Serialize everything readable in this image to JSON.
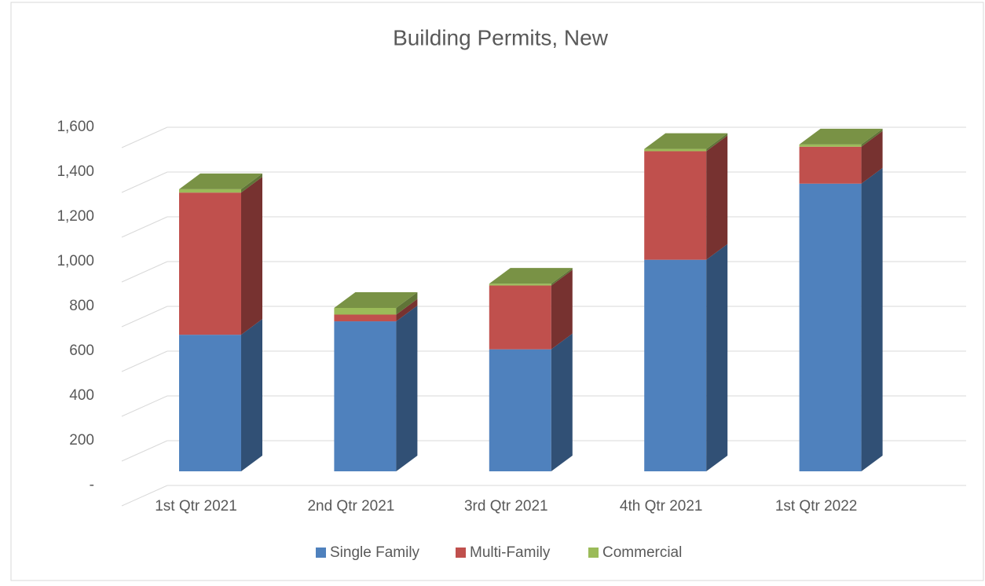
{
  "chart_data": {
    "type": "bar3d_stacked",
    "title": "Building Permits, New",
    "categories": [
      "1st Qtr 2021",
      "2nd Qtr 2021",
      "3rd Qtr 2021",
      "4th Qtr 2021",
      "1st Qtr 2022"
    ],
    "series": [
      {
        "name": "Single Family",
        "color": "#4f81bd",
        "values": [
          610,
          670,
          545,
          945,
          1285
        ]
      },
      {
        "name": "Multi-Family",
        "color": "#c0504d",
        "values": [
          635,
          30,
          285,
          485,
          165
        ]
      },
      {
        "name": "Commercial",
        "color": "#9bbb59",
        "values": [
          15,
          30,
          8,
          10,
          10
        ]
      }
    ],
    "ylim": [
      0,
      1800
    ],
    "yticks": [
      {
        "value": 0,
        "label": "-"
      },
      200,
      400,
      600,
      800,
      {
        "value": 1000,
        "label": "1,000"
      },
      {
        "value": 1200,
        "label": "1,200"
      },
      {
        "value": 1400,
        "label": "1,400"
      },
      {
        "value": 1600,
        "label": "1,600"
      }
    ],
    "grid": true,
    "legend": "bottom"
  }
}
